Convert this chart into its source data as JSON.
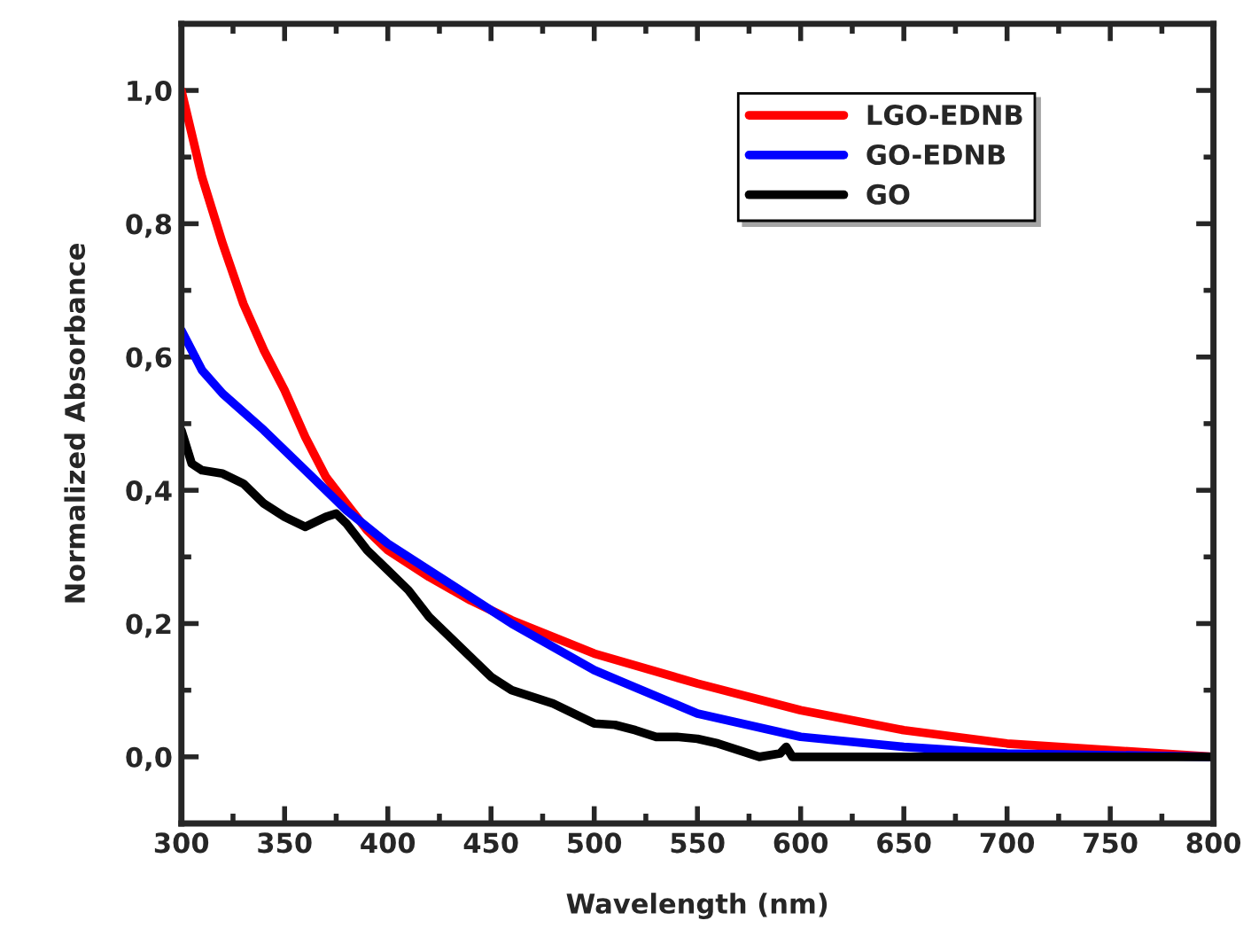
{
  "chart_data": {
    "type": "line",
    "xlabel": "Wavelength (nm)",
    "ylabel": "Normalized Absorbance",
    "xlim": [
      300,
      800
    ],
    "xticks": [
      300,
      350,
      400,
      450,
      500,
      550,
      600,
      650,
      700,
      750,
      800
    ],
    "ylim": [
      -0.1,
      1.1
    ],
    "yticks": [
      {
        "value": 0.0,
        "label": "0,0"
      },
      {
        "value": 0.2,
        "label": "0,2"
      },
      {
        "value": 0.4,
        "label": "0,4"
      },
      {
        "value": 0.6,
        "label": "0,6"
      },
      {
        "value": 0.8,
        "label": "0,8"
      },
      {
        "value": 1.0,
        "label": "1,0"
      }
    ],
    "legend": "top right",
    "grid": false,
    "series": [
      {
        "name": "LGO-EDNB",
        "color": "#ff0000",
        "x": [
          300,
          310,
          320,
          330,
          340,
          350,
          360,
          370,
          380,
          390,
          400,
          420,
          440,
          460,
          480,
          500,
          550,
          600,
          650,
          700,
          750,
          800
        ],
        "values": [
          1.0,
          0.87,
          0.77,
          0.68,
          0.61,
          0.55,
          0.48,
          0.42,
          0.38,
          0.34,
          0.31,
          0.27,
          0.235,
          0.205,
          0.18,
          0.155,
          0.11,
          0.07,
          0.04,
          0.02,
          0.01,
          0.0
        ]
      },
      {
        "name": "GO-EDNB",
        "color": "#0000ff",
        "x": [
          300,
          310,
          320,
          340,
          360,
          380,
          400,
          420,
          440,
          460,
          480,
          500,
          550,
          600,
          650,
          700,
          800
        ],
        "values": [
          0.64,
          0.58,
          0.545,
          0.49,
          0.43,
          0.37,
          0.32,
          0.28,
          0.24,
          0.2,
          0.165,
          0.13,
          0.065,
          0.03,
          0.015,
          0.005,
          0.0
        ]
      },
      {
        "name": "GO",
        "color": "#000000",
        "x": [
          300,
          305,
          310,
          320,
          330,
          340,
          350,
          360,
          370,
          375,
          380,
          390,
          400,
          410,
          420,
          430,
          440,
          450,
          460,
          470,
          480,
          490,
          500,
          510,
          520,
          530,
          540,
          550,
          560,
          570,
          580,
          590,
          593,
          596,
          800
        ],
        "values": [
          0.49,
          0.44,
          0.43,
          0.425,
          0.41,
          0.38,
          0.36,
          0.345,
          0.36,
          0.365,
          0.35,
          0.31,
          0.28,
          0.25,
          0.21,
          0.18,
          0.15,
          0.12,
          0.1,
          0.09,
          0.08,
          0.065,
          0.05,
          0.048,
          0.04,
          0.03,
          0.03,
          0.027,
          0.02,
          0.01,
          0.0,
          0.005,
          0.015,
          0.0,
          0.0
        ]
      }
    ]
  }
}
